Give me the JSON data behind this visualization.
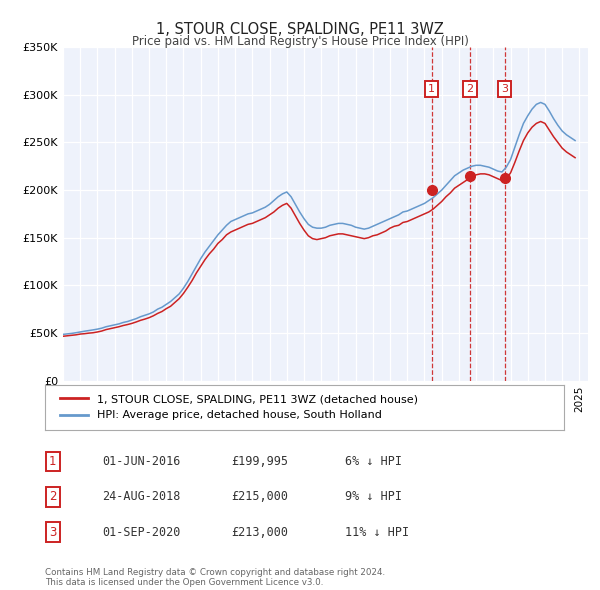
{
  "title": "1, STOUR CLOSE, SPALDING, PE11 3WZ",
  "subtitle": "Price paid vs. HM Land Registry's House Price Index (HPI)",
  "plot_background": "#eef2fb",
  "hpi_color": "#6699cc",
  "price_color": "#cc2222",
  "ylim": [
    0,
    350000
  ],
  "yticks": [
    0,
    50000,
    100000,
    150000,
    200000,
    250000,
    300000,
    350000
  ],
  "ytick_labels": [
    "£0",
    "£50K",
    "£100K",
    "£150K",
    "£200K",
    "£250K",
    "£300K",
    "£350K"
  ],
  "xlim_start": 1995.0,
  "xlim_end": 2025.5,
  "sale_dates": [
    2016.42,
    2018.65,
    2020.67
  ],
  "sale_prices": [
    199995,
    215000,
    213000
  ],
  "sale_labels": [
    "1",
    "2",
    "3"
  ],
  "sale_date_strings": [
    "01-JUN-2016",
    "24-AUG-2018",
    "01-SEP-2020"
  ],
  "sale_price_strings": [
    "£199,995",
    "£215,000",
    "£213,000"
  ],
  "sale_hpi_strings": [
    "6% ↓ HPI",
    "9% ↓ HPI",
    "11% ↓ HPI"
  ],
  "legend_price_label": "1, STOUR CLOSE, SPALDING, PE11 3WZ (detached house)",
  "legend_hpi_label": "HPI: Average price, detached house, South Holland",
  "footer": "Contains HM Land Registry data © Crown copyright and database right 2024.\nThis data is licensed under the Open Government Licence v3.0.",
  "years_hpi": [
    1995.0,
    1995.25,
    1995.5,
    1995.75,
    1996.0,
    1996.25,
    1996.5,
    1996.75,
    1997.0,
    1997.25,
    1997.5,
    1997.75,
    1998.0,
    1998.25,
    1998.5,
    1998.75,
    1999.0,
    1999.25,
    1999.5,
    1999.75,
    2000.0,
    2000.25,
    2000.5,
    2000.75,
    2001.0,
    2001.25,
    2001.5,
    2001.75,
    2002.0,
    2002.25,
    2002.5,
    2002.75,
    2003.0,
    2003.25,
    2003.5,
    2003.75,
    2004.0,
    2004.25,
    2004.5,
    2004.75,
    2005.0,
    2005.25,
    2005.5,
    2005.75,
    2006.0,
    2006.25,
    2006.5,
    2006.75,
    2007.0,
    2007.25,
    2007.5,
    2007.75,
    2008.0,
    2008.25,
    2008.5,
    2008.75,
    2009.0,
    2009.25,
    2009.5,
    2009.75,
    2010.0,
    2010.25,
    2010.5,
    2010.75,
    2011.0,
    2011.25,
    2011.5,
    2011.75,
    2012.0,
    2012.25,
    2012.5,
    2012.75,
    2013.0,
    2013.25,
    2013.5,
    2013.75,
    2014.0,
    2014.25,
    2014.5,
    2014.75,
    2015.0,
    2015.25,
    2015.5,
    2015.75,
    2016.0,
    2016.25,
    2016.5,
    2016.75,
    2017.0,
    2017.25,
    2017.5,
    2017.75,
    2018.0,
    2018.25,
    2018.5,
    2018.75,
    2019.0,
    2019.25,
    2019.5,
    2019.75,
    2020.0,
    2020.25,
    2020.5,
    2020.75,
    2021.0,
    2021.25,
    2021.5,
    2021.75,
    2022.0,
    2022.25,
    2022.5,
    2022.75,
    2023.0,
    2023.25,
    2023.5,
    2023.75,
    2024.0,
    2024.25,
    2024.5,
    2024.75
  ],
  "hpi_values": [
    48500,
    49000,
    49500,
    50200,
    51000,
    51800,
    52500,
    53200,
    54000,
    55000,
    56500,
    57500,
    58500,
    59500,
    61000,
    62000,
    63500,
    65000,
    67000,
    68500,
    70000,
    72000,
    75000,
    77000,
    80000,
    83000,
    87000,
    91000,
    97000,
    104000,
    112000,
    120000,
    128000,
    135000,
    141000,
    147000,
    153000,
    158000,
    163000,
    167000,
    169000,
    171000,
    173000,
    175000,
    176000,
    178000,
    180000,
    182000,
    185000,
    189000,
    193000,
    196000,
    198000,
    193000,
    185000,
    177000,
    170000,
    164000,
    161000,
    160000,
    160000,
    161000,
    163000,
    164000,
    165000,
    165000,
    164000,
    163000,
    161000,
    160000,
    159000,
    160000,
    162000,
    164000,
    166000,
    168000,
    170000,
    172000,
    174000,
    177000,
    178000,
    180000,
    182000,
    184000,
    186000,
    189000,
    192000,
    196000,
    200000,
    205000,
    210000,
    215000,
    218000,
    221000,
    223000,
    225000,
    226000,
    226000,
    225000,
    224000,
    222000,
    220000,
    219000,
    224000,
    232000,
    245000,
    258000,
    270000,
    278000,
    285000,
    290000,
    292000,
    290000,
    283000,
    275000,
    268000,
    262000,
    258000,
    255000,
    252000
  ],
  "price_paid_values": [
    46500,
    47000,
    47500,
    48000,
    48800,
    49200,
    49800,
    50200,
    51000,
    52000,
    53500,
    54500,
    55500,
    56500,
    57800,
    58800,
    60000,
    61500,
    63200,
    64500,
    66000,
    68000,
    70500,
    72500,
    75500,
    78000,
    82000,
    86000,
    91500,
    98000,
    105000,
    113000,
    120000,
    127000,
    133000,
    138000,
    144000,
    148000,
    153000,
    156000,
    158000,
    160000,
    162000,
    164000,
    165000,
    167000,
    169000,
    171000,
    174000,
    177000,
    181000,
    184000,
    186000,
    181000,
    173000,
    165000,
    158000,
    152000,
    149000,
    148000,
    149000,
    150000,
    152000,
    153000,
    154000,
    154000,
    153000,
    152000,
    151000,
    150000,
    149000,
    150000,
    152000,
    153000,
    155000,
    157000,
    160000,
    162000,
    163000,
    166000,
    167000,
    169000,
    171000,
    173000,
    175000,
    177000,
    180000,
    184000,
    188000,
    193000,
    197000,
    202000,
    205000,
    208000,
    211000,
    214000,
    216000,
    217000,
    217000,
    216000,
    214000,
    212000,
    210000,
    212000,
    218000,
    229000,
    241000,
    252000,
    260000,
    266000,
    270000,
    272000,
    270000,
    263000,
    256000,
    250000,
    244000,
    240000,
    237000,
    234000
  ]
}
